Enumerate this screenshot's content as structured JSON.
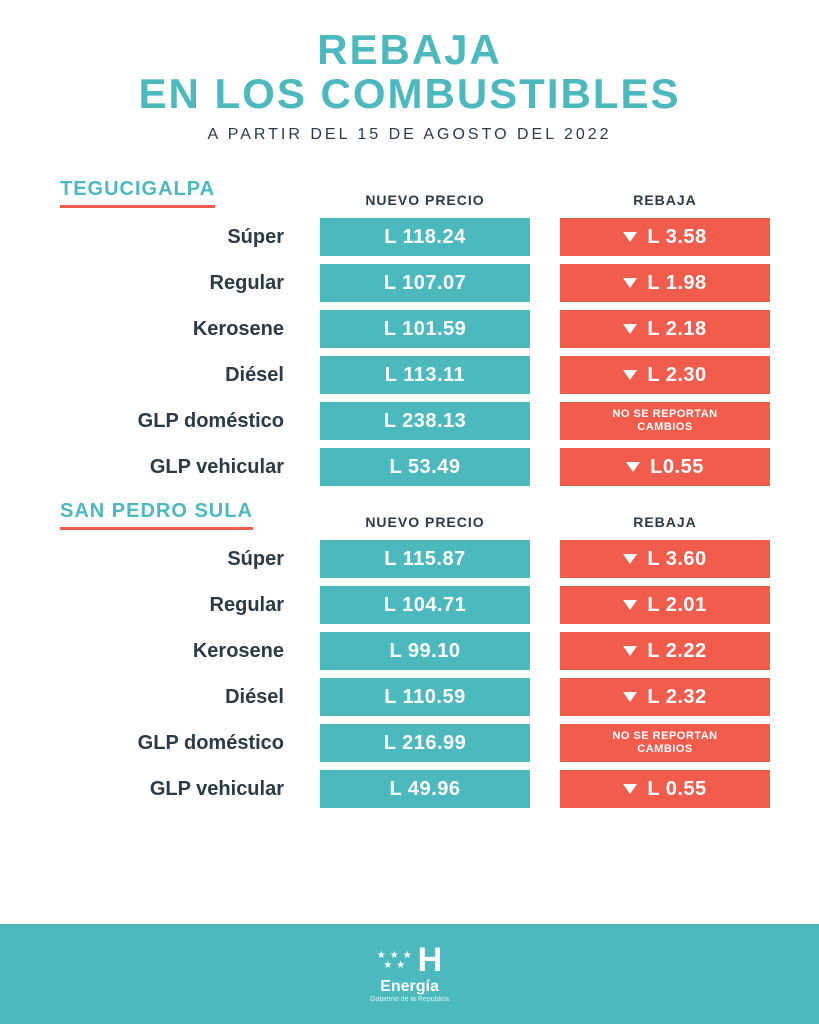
{
  "colors": {
    "teal": "#4bb9bd",
    "red": "#f25c4d",
    "dark": "#2b3a45",
    "underline": "#f25c4d",
    "footer_bg": "#4bb9bd",
    "white": "#ffffff"
  },
  "header": {
    "title_line1": "REBAJA",
    "title_line2": "EN LOS COMBUSTIBLES",
    "subtitle": "A PARTIR DEL 15 DE AGOSTO DEL 2022"
  },
  "column_heads": {
    "price": "NUEVO PRECIO",
    "discount": "REBAJA"
  },
  "no_change_text": "NO SE REPORTAN\nCAMBIOS",
  "cities": [
    {
      "name": "TEGUCIGALPA",
      "rows": [
        {
          "fuel": "Súper",
          "price": "L 118.24",
          "discount": "L 3.58",
          "no_change": false
        },
        {
          "fuel": "Regular",
          "price": "L 107.07",
          "discount": "L 1.98",
          "no_change": false
        },
        {
          "fuel": "Kerosene",
          "price": "L 101.59",
          "discount": "L 2.18",
          "no_change": false
        },
        {
          "fuel": "Diésel",
          "price": "L 113.11",
          "discount": "L 2.30",
          "no_change": false
        },
        {
          "fuel": "GLP doméstico",
          "price": "L 238.13",
          "discount": "",
          "no_change": true
        },
        {
          "fuel": "GLP vehicular",
          "price": "L 53.49",
          "discount": "L0.55",
          "no_change": false
        }
      ]
    },
    {
      "name": "SAN PEDRO SULA",
      "rows": [
        {
          "fuel": "Súper",
          "price": "L 115.87",
          "discount": "L 3.60",
          "no_change": false
        },
        {
          "fuel": "Regular",
          "price": "L 104.71",
          "discount": "L 2.01",
          "no_change": false
        },
        {
          "fuel": "Kerosene",
          "price": "L 99.10",
          "discount": "L 2.22",
          "no_change": false
        },
        {
          "fuel": "Diésel",
          "price": "L 110.59",
          "discount": "L 2.32",
          "no_change": false
        },
        {
          "fuel": "GLP doméstico",
          "price": "L 216.99",
          "discount": "",
          "no_change": true
        },
        {
          "fuel": "GLP vehicular",
          "price": "L 49.96",
          "discount": "L 0.55",
          "no_change": false
        }
      ]
    }
  ],
  "footer": {
    "brand": "Energía",
    "brand_sub": "Gobierno de la República"
  }
}
